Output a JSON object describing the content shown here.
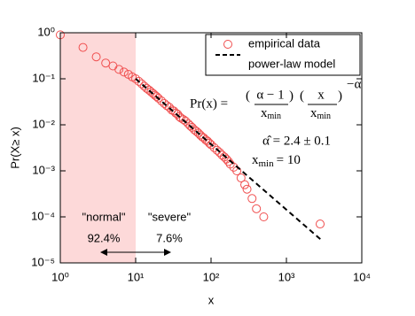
{
  "chart_data": {
    "type": "scatter",
    "xlabel": "x",
    "ylabel": "Pr(X≥ x)",
    "xscale": "log",
    "yscale": "log",
    "xlim": [
      1,
      10000
    ],
    "ylim": [
      1e-05,
      1
    ],
    "xticks": [
      {
        "value": 1,
        "label": "10⁰"
      },
      {
        "value": 10,
        "label": "10¹"
      },
      {
        "value": 100,
        "label": "10²"
      },
      {
        "value": 1000,
        "label": "10³"
      },
      {
        "value": 10000,
        "label": "10⁴"
      }
    ],
    "yticks": [
      {
        "value": 1,
        "label": "10⁰"
      },
      {
        "value": 0.1,
        "label": "10⁻¹"
      },
      {
        "value": 0.01,
        "label": "10⁻²"
      },
      {
        "value": 0.001,
        "label": "10⁻³"
      },
      {
        "value": 0.0001,
        "label": "10⁻⁴"
      },
      {
        "value": 1e-05,
        "label": "10⁻⁵"
      }
    ],
    "shaded_region": {
      "xlim": [
        1,
        10
      ],
      "color": "#fdd9d9"
    },
    "legend": "upper right",
    "series": [
      {
        "name": "empirical data",
        "color": "#f05050",
        "marker": "circle",
        "x": [
          1,
          2,
          3,
          4,
          5,
          6,
          7,
          8,
          9,
          10,
          11,
          12,
          13,
          14,
          15,
          16,
          17,
          18,
          19,
          20,
          22,
          24,
          26,
          28,
          30,
          32,
          34,
          36,
          38,
          40,
          43,
          46,
          50,
          53,
          56,
          60,
          64,
          68,
          72,
          76,
          80,
          85,
          90,
          95,
          100,
          110,
          120,
          130,
          140,
          150,
          160,
          170,
          180,
          200,
          220,
          250,
          280,
          300,
          350,
          400,
          500,
          2800
        ],
        "values": [
          0.9,
          0.48,
          0.3,
          0.22,
          0.19,
          0.16,
          0.14,
          0.125,
          0.11,
          0.1,
          0.088,
          0.078,
          0.069,
          0.062,
          0.057,
          0.052,
          0.048,
          0.044,
          0.041,
          0.038,
          0.033,
          0.029,
          0.026,
          0.024,
          0.021,
          0.02,
          0.018,
          0.017,
          0.015,
          0.014,
          0.013,
          0.012,
          0.0105,
          0.0095,
          0.0088,
          0.0078,
          0.0072,
          0.0066,
          0.006,
          0.0055,
          0.0052,
          0.0047,
          0.0044,
          0.004,
          0.0037,
          0.0032,
          0.0028,
          0.0025,
          0.0022,
          0.002,
          0.0018,
          0.0016,
          0.0014,
          0.0012,
          0.001,
          0.0007,
          0.0005,
          0.0004,
          0.00025,
          0.00015,
          0.0001,
          7e-05
        ]
      },
      {
        "name": "power-law model",
        "color": "#000000",
        "marker": "dashed-line",
        "x": [
          10,
          3000
        ],
        "values": [
          0.1,
          3e-05
        ]
      }
    ],
    "formula": {
      "lhs": "Pr(x) =",
      "num1": "α − 1",
      "den": "x",
      "sub": "min",
      "num2": "x",
      "exp": "−α"
    },
    "annotations": {
      "alpha": "α̂ = 2.4 ± 0.1",
      "xmin_x": "x",
      "xmin_sub": "min",
      "xmin_val": "= 10",
      "normal": "\"normal\"",
      "severe": "\"severe\"",
      "normal_pct": "92.4%",
      "severe_pct": "7.6%"
    }
  }
}
